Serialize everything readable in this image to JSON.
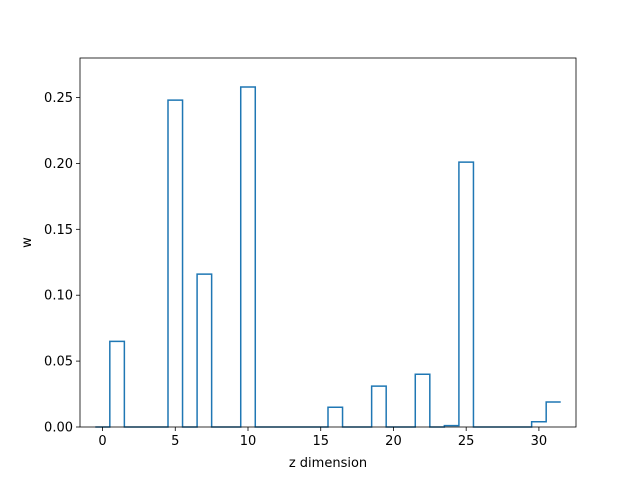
{
  "chart_data": {
    "type": "bar",
    "style": "step",
    "title": "",
    "xlabel": "z dimension",
    "ylabel": "w",
    "xlim": [
      -1.55,
      32.55
    ],
    "ylim": [
      0,
      0.28
    ],
    "grid": false,
    "legend": "none",
    "series_color": "#1f77b4",
    "xticks": [
      0,
      5,
      10,
      15,
      20,
      25,
      30
    ],
    "xtick_labels": [
      "0",
      "5",
      "10",
      "15",
      "20",
      "25",
      "30"
    ],
    "yticks": [
      0.0,
      0.05,
      0.1,
      0.15,
      0.2,
      0.25
    ],
    "ytick_labels": [
      "0.00",
      "0.05",
      "0.10",
      "0.15",
      "0.20",
      "0.25"
    ],
    "x": [
      0,
      1,
      2,
      3,
      4,
      5,
      6,
      7,
      8,
      9,
      10,
      11,
      12,
      13,
      14,
      15,
      16,
      17,
      18,
      19,
      20,
      21,
      22,
      23,
      24,
      25,
      26,
      27,
      28,
      29,
      30,
      31
    ],
    "values": [
      0.0,
      0.065,
      0.0,
      0.0,
      0.0,
      0.248,
      0.0,
      0.116,
      0.0,
      0.0,
      0.258,
      0.0,
      0.0,
      0.0,
      0.0,
      0.0,
      0.015,
      0.0,
      0.0,
      0.031,
      0.0,
      0.0,
      0.04,
      0.0,
      0.001,
      0.201,
      0.0,
      0.0,
      0.0,
      0.0,
      0.004,
      0.019
    ]
  }
}
